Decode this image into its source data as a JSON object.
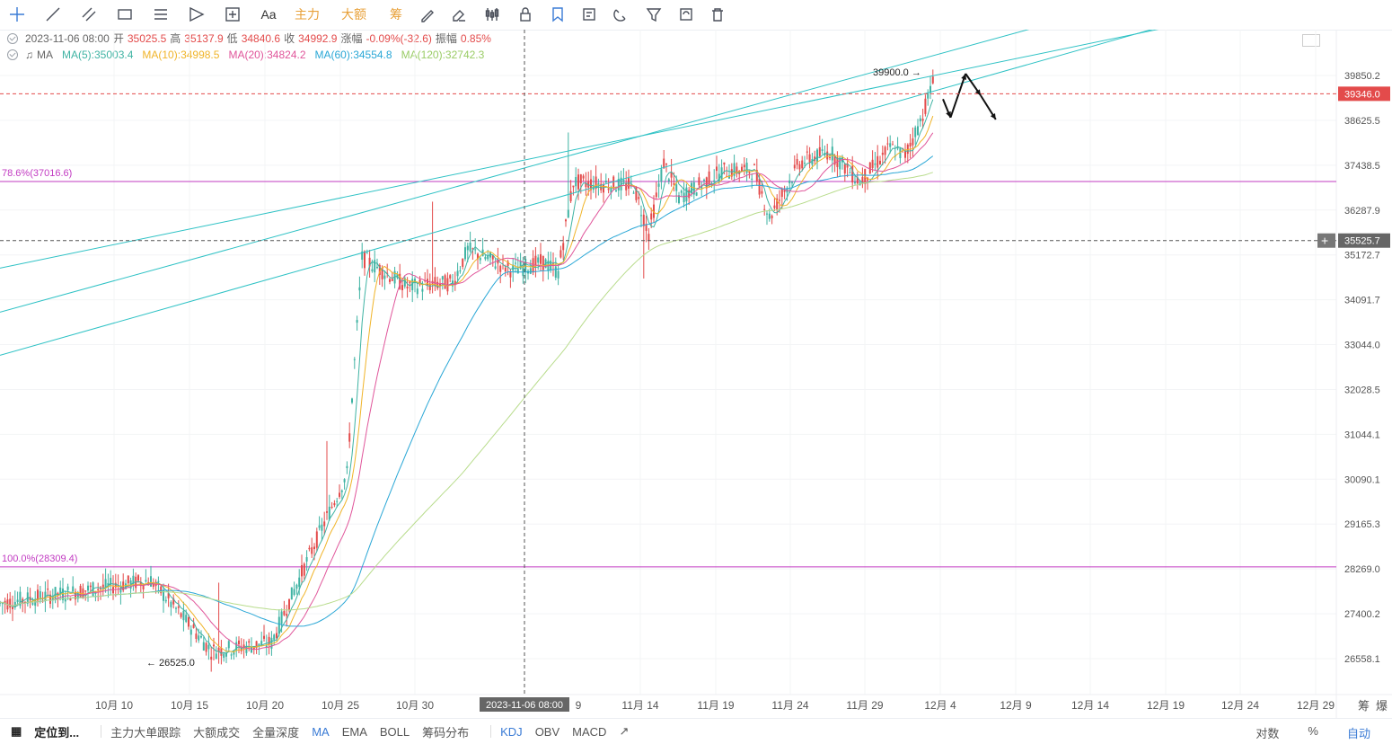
{
  "toolbar": {
    "items": [
      {
        "name": "crosshair-tool-icon",
        "x": 19,
        "active": true
      },
      {
        "name": "trend-line-tool-icon",
        "x": 59
      },
      {
        "name": "parallel-channel-tool-icon",
        "x": 99
      },
      {
        "name": "rectangle-tool-icon",
        "x": 139
      },
      {
        "name": "fibonacci-tool-icon",
        "x": 179
      },
      {
        "name": "pattern-tool-icon",
        "x": 219
      },
      {
        "name": "measure-tool-icon",
        "x": 259
      }
    ],
    "aa_label": "Aa",
    "main_force": "主力",
    "big_amount": "大额",
    "chips": "筹",
    "icons2": [
      "brush-icon",
      "eraser-icon",
      "candle-style-icon",
      "lock-icon",
      "bookmark-icon",
      "note-icon",
      "magnet-icon",
      "filter-icon",
      "sync-icon",
      "trash-icon"
    ]
  },
  "info": {
    "date": "2023-11-06 08:00",
    "open_label": "开",
    "open": "35025.5",
    "high_label": "高",
    "high": "35137.9",
    "low_label": "低",
    "low": "34840.6",
    "close_label": "收",
    "close": "34992.9",
    "change_label": "涨幅",
    "change": "-0.09%(-32.6)",
    "amp_label": "振幅",
    "amp": "0.85%",
    "ma_label": "MA",
    "ma5": "MA(5):35003.4",
    "ma10": "MA(10):34998.5",
    "ma20": "MA(20):34824.2",
    "ma60": "MA(60):34554.8",
    "ma120": "MA(120):32742.3"
  },
  "colors": {
    "up": "#3fb3a3",
    "down": "#e34b4b",
    "ma5": "#3fb3a3",
    "ma10": "#f0b429",
    "ma20": "#e0559a",
    "ma60": "#2aa7d6",
    "ma120": "#b8dc8c",
    "channel": "#2fc2c5",
    "fib": "#c23bc2",
    "price_tag": "#e34b4b",
    "cross_tag": "#666666"
  },
  "chart_data": {
    "type": "candlestick",
    "y_ticks": [
      "39850.2",
      "38625.5",
      "37438.5",
      "36287.9",
      "35172.7",
      "34091.7",
      "33044.0",
      "32028.5",
      "31044.1",
      "30090.1",
      "29165.3",
      "28269.0",
      "27400.2",
      "26558.1"
    ],
    "x_ticks": [
      "10月 10",
      "10月 15",
      "10月 20",
      "10月 25",
      "10月 30",
      "11月 14",
      "11月 19",
      "11月 24",
      "11月 29",
      "12月 4",
      "12月 9",
      "12月 14",
      "12月 19",
      "12月 24",
      "12月 29"
    ],
    "x_tick_partial": "9",
    "crosshair_date": "2023-11-06 08:00",
    "crosshair_price": "35525.7",
    "current_price": "39346.0",
    "fib_levels": [
      {
        "label": "78.6%(37016.6)",
        "value": 37016.6
      },
      {
        "label": "100.0%(28309.4)",
        "value": 28309.4
      }
    ],
    "high_annotation": "39900.0",
    "low_annotation": "26525.0",
    "segments": [
      {
        "from": [
          0,
          27600
        ],
        "to": [
          10,
          28050
        ]
      },
      {
        "from": [
          10,
          28050
        ],
        "to": [
          14,
          26700
        ]
      },
      {
        "from": [
          14,
          26700
        ],
        "to": [
          18,
          26850
        ]
      },
      {
        "from": [
          18,
          26850
        ],
        "to": [
          23,
          30200
        ]
      },
      {
        "from": [
          23,
          30200
        ],
        "to": [
          24,
          35100
        ]
      },
      {
        "from": [
          24,
          35100
        ],
        "to": [
          27,
          34400
        ]
      },
      {
        "from": [
          27,
          34400
        ],
        "to": [
          30,
          34500
        ]
      },
      {
        "from": [
          30,
          34500
        ],
        "to": [
          31,
          35300
        ]
      },
      {
        "from": [
          31,
          35300
        ],
        "to": [
          34,
          34800
        ]
      },
      {
        "from": [
          34,
          34800
        ],
        "to": [
          36,
          35000
        ]
      },
      {
        "from": [
          36,
          35000
        ],
        "to": [
          37,
          34750
        ]
      },
      {
        "from": [
          37,
          34750
        ],
        "to": [
          38,
          37000
        ]
      },
      {
        "from": [
          38,
          37000
        ],
        "to": [
          42,
          36900
        ]
      },
      {
        "from": [
          42,
          36900
        ],
        "to": [
          43,
          35700
        ]
      },
      {
        "from": [
          43,
          35700
        ],
        "to": [
          44,
          37500
        ]
      },
      {
        "from": [
          44,
          37500
        ],
        "to": [
          45,
          36600
        ]
      },
      {
        "from": [
          45,
          36600
        ],
        "to": [
          48,
          37300
        ]
      },
      {
        "from": [
          48,
          37300
        ],
        "to": [
          50,
          37300
        ]
      },
      {
        "from": [
          50,
          37300
        ],
        "to": [
          51,
          36100
        ]
      },
      {
        "from": [
          51,
          36100
        ],
        "to": [
          53,
          37500
        ]
      },
      {
        "from": [
          53,
          37500
        ],
        "to": [
          55,
          37800
        ]
      },
      {
        "from": [
          55,
          37800
        ],
        "to": [
          57,
          37000
        ]
      },
      {
        "from": [
          57,
          37000
        ],
        "to": [
          59,
          37900
        ]
      },
      {
        "from": [
          59,
          37900
        ],
        "to": [
          60,
          37700
        ]
      },
      {
        "from": [
          60,
          37700
        ],
        "to": [
          61,
          38600
        ]
      },
      {
        "from": [
          61,
          38600
        ],
        "to": [
          62,
          39850
        ]
      }
    ],
    "forecast_arrows": [
      [
        62.5,
        39200
      ],
      [
        63,
        38700
      ],
      [
        64,
        39900
      ],
      [
        65,
        39300
      ],
      [
        66,
        38650
      ]
    ],
    "date_axis": {
      "first_day": "10月 4",
      "last_day": "12月 29"
    },
    "channel_lines": [
      {
        "from": [
          0,
          34850
        ],
        "to": [
          62.5,
          39900
        ]
      },
      {
        "from": [
          0,
          33800
        ],
        "to": [
          62.5,
          40480
        ]
      },
      {
        "from": [
          0,
          32800
        ],
        "to": [
          62.5,
          39490
        ]
      }
    ]
  },
  "bottombar": {
    "locate": "定位到...",
    "items": [
      "主力大单跟踪",
      "大额成交",
      "全量深度",
      "MA",
      "EMA",
      "BOLL",
      "筹码分布",
      "KDJ",
      "OBV",
      "MACD"
    ],
    "right": [
      "对数",
      "%",
      "自动"
    ],
    "axis_right": [
      "筹",
      "爆"
    ]
  }
}
